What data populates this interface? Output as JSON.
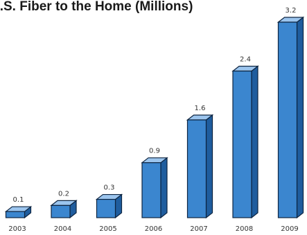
{
  "chart_data": {
    "type": "bar",
    "title": "U.S. Fiber to the Home (Millions)",
    "xlabel": "",
    "ylabel": "",
    "categories": [
      "2003",
      "2004",
      "2005",
      "2006",
      "2007",
      "2008",
      "2009"
    ],
    "values": [
      0.1,
      0.2,
      0.3,
      0.9,
      1.6,
      2.4,
      3.2
    ],
    "value_labels": [
      "0.1",
      "0.2",
      "0.3",
      "0.9",
      "1.6",
      "2.4",
      "3.2"
    ],
    "ylim": [
      0,
      3.2
    ],
    "grid": false,
    "legend": "none",
    "style": "3d-column"
  },
  "colors": {
    "bar_front": "#3b86cf",
    "bar_top": "#9cc5ee",
    "bar_side": "#1f5d9e",
    "outline": "#0d2440",
    "axis_text": "#333333",
    "title_text": "#1a1a1a"
  }
}
